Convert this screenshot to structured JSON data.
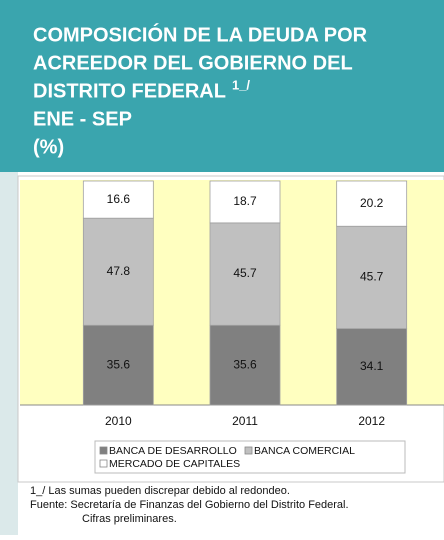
{
  "chart_data": {
    "type": "stacked_bar",
    "title": [
      "COMPOSICIÓN DE LA DEUDA POR",
      "ACREEDOR DEL GOBIERNO DEL",
      "DISTRITO FEDERAL",
      "ENE - SEP",
      "(%)"
    ],
    "title_superscript": "1_/",
    "categories": [
      "2010",
      "2011",
      "2012"
    ],
    "series": [
      {
        "name": "BANCA DE DESARROLLO",
        "color": "#808080",
        "values": [
          35.6,
          35.6,
          34.1
        ]
      },
      {
        "name": "BANCA COMERCIAL",
        "color": "#c0c0c0",
        "values": [
          47.8,
          45.7,
          45.7
        ]
      },
      {
        "name": "MERCADO DE CAPITALES",
        "color": "#ffffff",
        "values": [
          16.6,
          18.7,
          20.2
        ]
      }
    ],
    "ylim": [
      0,
      100
    ],
    "notes": [
      "1_/ Las sumas pueden discrepar debido al redondeo.",
      "Fuente: Secretaría de Finanzas del Gobierno del Distrito Federal.",
      "Cifras preliminares."
    ]
  }
}
